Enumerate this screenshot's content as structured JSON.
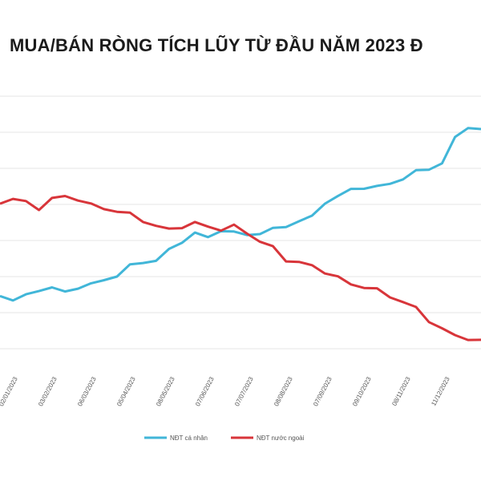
{
  "chart_data": {
    "type": "line",
    "title": "MUA/BÁN RÒNG TÍCH LŨY TỪ ĐẦU NĂM 2023 Đ",
    "xlabel": "",
    "ylabel": "",
    "grid": true,
    "legend_position": "bottom",
    "x_ticks": [
      "02/01/2023",
      "03/02/2023",
      "06/03/2023",
      "05/04/2023",
      "08/05/2023",
      "07/06/2023",
      "07/07/2023",
      "08/08/2023",
      "07/09/2023",
      "09/10/2023",
      "08/11/2023",
      "11/12/2023"
    ],
    "series": [
      {
        "name": "NĐT cá nhân",
        "color": "#41b6d8",
        "values": [
          2.4,
          2.3,
          2.4,
          2.6,
          2.7,
          2.5,
          2.7,
          2.8,
          2.9,
          3.1,
          3.4,
          3.5,
          3.6,
          3.9,
          4.2,
          4.5,
          4.3,
          4.6,
          4.5,
          4.4,
          4.5,
          4.6,
          4.7,
          4.9,
          5.0,
          5.5,
          5.7,
          5.9,
          6.0,
          6.0,
          6.1,
          6.3,
          6.5,
          6.6,
          6.8,
          7.6,
          8.0,
          7.9
        ]
      },
      {
        "name": "NĐT nước ngoài",
        "color": "#d8353a",
        "values": [
          5.5,
          5.6,
          5.5,
          5.3,
          5.6,
          5.7,
          5.6,
          5.4,
          5.3,
          5.2,
          5.1,
          4.9,
          4.7,
          4.6,
          4.7,
          4.8,
          4.7,
          4.6,
          4.7,
          4.5,
          4.2,
          4.0,
          3.6,
          3.5,
          3.4,
          3.2,
          3.0,
          2.8,
          2.7,
          2.6,
          2.4,
          2.2,
          2.0,
          1.6,
          1.3,
          1.1,
          1.0,
          0.9
        ]
      }
    ]
  }
}
